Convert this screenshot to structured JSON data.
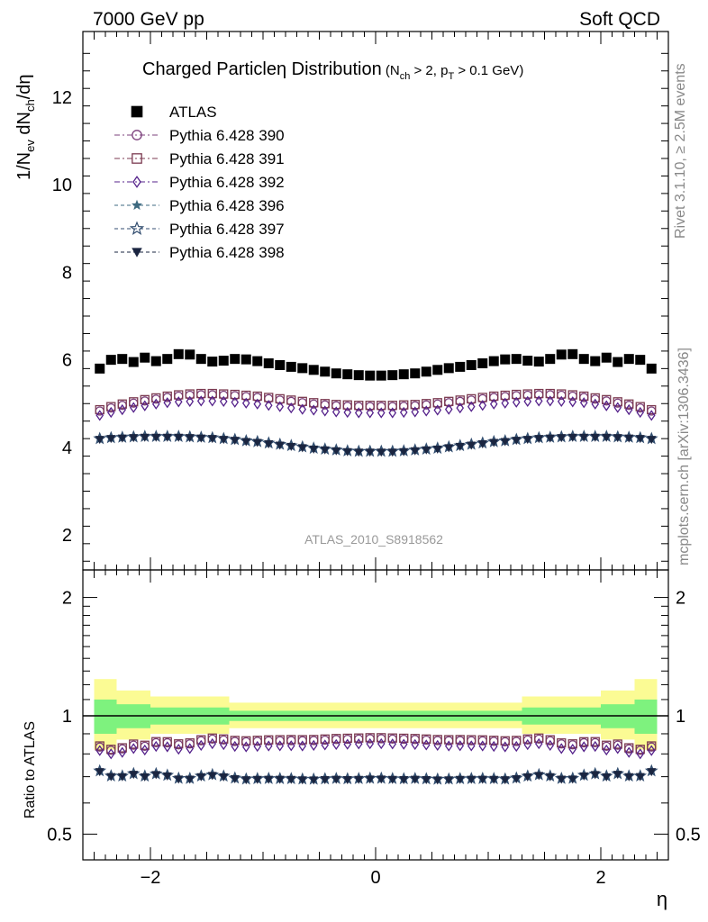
{
  "header": {
    "left": "7000 GeV pp",
    "right": "Soft QCD"
  },
  "side": {
    "rivet": "Rivet 3.1.10, ≥ 2.5M events",
    "mcplots": "mcplots.cern.ch [arXiv:1306.3436]"
  },
  "chart_data": [
    {
      "type": "scatter",
      "title_main": "Charged Particle",
      "title_eta": "η",
      "title_dist": " Distribution",
      "title_cuts": "(N_ch > 2, p_T > 0.1 GeV)",
      "ylabel": "1/N_ev dN_ch/dη",
      "xlabel": "η",
      "analysis_label": "ATLAS_2010_S8918562",
      "xlim": [
        -2.6,
        2.6
      ],
      "ylim": [
        1.2,
        13.5
      ],
      "y_ticks": [
        "2",
        "4",
        "6",
        "8",
        "10",
        "12"
      ],
      "x_ticks": [
        "−2",
        "0",
        "2"
      ],
      "x": [
        -2.45,
        -2.35,
        -2.25,
        -2.15,
        -2.05,
        -1.95,
        -1.85,
        -1.75,
        -1.65,
        -1.55,
        -1.45,
        -1.35,
        -1.25,
        -1.15,
        -1.05,
        -0.95,
        -0.85,
        -0.75,
        -0.65,
        -0.55,
        -0.45,
        -0.35,
        -0.25,
        -0.15,
        -0.05,
        0.05,
        0.15,
        0.25,
        0.35,
        0.45,
        0.55,
        0.65,
        0.75,
        0.85,
        0.95,
        1.05,
        1.15,
        1.25,
        1.35,
        1.45,
        1.55,
        1.65,
        1.75,
        1.85,
        1.95,
        2.05,
        2.15,
        2.25,
        2.35,
        2.45
      ],
      "legend": [
        "ATLAS",
        "Pythia 6.428 390",
        "Pythia 6.428 391",
        "Pythia 6.428 392",
        "Pythia 6.428 396",
        "Pythia 6.428 397",
        "Pythia 6.428 398"
      ],
      "series": [
        {
          "name": "ATLAS",
          "color": "#000000",
          "marker": "filled-square",
          "values": [
            5.8,
            6.0,
            6.02,
            5.95,
            6.05,
            5.97,
            6.02,
            6.13,
            6.12,
            6.02,
            5.96,
            5.98,
            6.02,
            6.01,
            5.97,
            5.92,
            5.88,
            5.84,
            5.81,
            5.77,
            5.73,
            5.69,
            5.67,
            5.65,
            5.64,
            5.64,
            5.65,
            5.67,
            5.69,
            5.73,
            5.77,
            5.81,
            5.84,
            5.88,
            5.92,
            5.97,
            6.01,
            6.02,
            5.98,
            5.96,
            6.02,
            6.12,
            6.13,
            6.02,
            5.97,
            6.05,
            5.95,
            6.02,
            6.0,
            5.8
          ]
        },
        {
          "name": "Pythia 6.428 390",
          "color": "#7b3f7b",
          "marker": "open-circle",
          "values": [
            4.83,
            4.9,
            4.96,
            5.01,
            5.06,
            5.1,
            5.14,
            5.17,
            5.19,
            5.2,
            5.2,
            5.19,
            5.18,
            5.16,
            5.14,
            5.11,
            5.08,
            5.05,
            5.02,
            4.99,
            4.97,
            4.95,
            4.94,
            4.93,
            4.93,
            4.93,
            4.93,
            4.94,
            4.95,
            4.97,
            4.99,
            5.02,
            5.05,
            5.08,
            5.11,
            5.14,
            5.16,
            5.18,
            5.19,
            5.2,
            5.2,
            5.19,
            5.17,
            5.14,
            5.1,
            5.06,
            5.01,
            4.96,
            4.9,
            4.83
          ]
        },
        {
          "name": "Pythia 6.428 391",
          "color": "#7b3a50",
          "marker": "open-square",
          "values": [
            4.86,
            4.93,
            4.99,
            5.04,
            5.09,
            5.13,
            5.17,
            5.2,
            5.22,
            5.23,
            5.23,
            5.22,
            5.21,
            5.19,
            5.17,
            5.14,
            5.11,
            5.08,
            5.05,
            5.02,
            5.0,
            4.98,
            4.97,
            4.96,
            4.96,
            4.96,
            4.96,
            4.97,
            4.98,
            5.0,
            5.02,
            5.05,
            5.08,
            5.11,
            5.14,
            5.17,
            5.19,
            5.21,
            5.22,
            5.23,
            5.23,
            5.22,
            5.2,
            5.17,
            5.13,
            5.09,
            5.04,
            4.99,
            4.93,
            4.86
          ]
        },
        {
          "name": "Pythia 6.428 392",
          "color": "#55228b",
          "marker": "open-diamond",
          "values": [
            4.73,
            4.8,
            4.86,
            4.91,
            4.95,
            4.99,
            5.02,
            5.04,
            5.05,
            5.06,
            5.06,
            5.05,
            5.03,
            5.01,
            4.99,
            4.96,
            4.93,
            4.9,
            4.87,
            4.85,
            4.83,
            4.81,
            4.8,
            4.79,
            4.79,
            4.79,
            4.79,
            4.8,
            4.81,
            4.83,
            4.85,
            4.87,
            4.9,
            4.93,
            4.96,
            4.99,
            5.01,
            5.03,
            5.05,
            5.06,
            5.06,
            5.05,
            5.04,
            5.02,
            4.99,
            4.95,
            4.91,
            4.86,
            4.8,
            4.73
          ]
        },
        {
          "name": "Pythia 6.428 396",
          "color": "#3d6a80",
          "marker": "filled-star",
          "values": [
            4.19,
            4.21,
            4.22,
            4.23,
            4.24,
            4.24,
            4.24,
            4.24,
            4.23,
            4.22,
            4.21,
            4.19,
            4.17,
            4.14,
            4.12,
            4.09,
            4.06,
            4.03,
            4.0,
            3.97,
            3.95,
            3.93,
            3.91,
            3.9,
            3.9,
            3.9,
            3.9,
            3.91,
            3.93,
            3.95,
            3.97,
            4.0,
            4.03,
            4.06,
            4.09,
            4.12,
            4.14,
            4.17,
            4.19,
            4.21,
            4.22,
            4.23,
            4.24,
            4.24,
            4.24,
            4.24,
            4.23,
            4.22,
            4.21,
            4.19
          ]
        },
        {
          "name": "Pythia 6.428 397",
          "color": "#334e70",
          "marker": "open-star",
          "values": [
            4.2,
            4.22,
            4.23,
            4.24,
            4.25,
            4.25,
            4.25,
            4.25,
            4.24,
            4.23,
            4.22,
            4.2,
            4.18,
            4.15,
            4.13,
            4.1,
            4.07,
            4.04,
            4.01,
            3.98,
            3.96,
            3.94,
            3.92,
            3.91,
            3.91,
            3.91,
            3.91,
            3.92,
            3.94,
            3.96,
            3.98,
            4.01,
            4.04,
            4.07,
            4.1,
            4.13,
            4.15,
            4.18,
            4.2,
            4.22,
            4.23,
            4.24,
            4.25,
            4.25,
            4.25,
            4.25,
            4.24,
            4.23,
            4.22,
            4.2
          ]
        },
        {
          "name": "Pythia 6.428 398",
          "color": "#1a2540",
          "marker": "filled-triangle-down",
          "values": [
            4.18,
            4.2,
            4.21,
            4.22,
            4.23,
            4.23,
            4.23,
            4.23,
            4.22,
            4.21,
            4.2,
            4.18,
            4.16,
            4.13,
            4.11,
            4.08,
            4.05,
            4.02,
            3.99,
            3.96,
            3.94,
            3.92,
            3.9,
            3.89,
            3.89,
            3.89,
            3.89,
            3.9,
            3.92,
            3.94,
            3.96,
            3.99,
            4.02,
            4.05,
            4.08,
            4.11,
            4.13,
            4.16,
            4.18,
            4.2,
            4.21,
            4.22,
            4.23,
            4.23,
            4.23,
            4.23,
            4.22,
            4.21,
            4.2,
            4.18
          ]
        }
      ]
    },
    {
      "type": "scatter",
      "ylabel": "Ratio to ATLAS",
      "xlabel": "η",
      "xlim": [
        -2.6,
        2.6
      ],
      "ylim": [
        0.43,
        2.35
      ],
      "y_scale": "log",
      "y_ticks": [
        "0.5",
        "1",
        "2"
      ],
      "x_ticks": [
        "−2",
        "0",
        "2"
      ],
      "reference_line": 1,
      "band_colors": {
        "inner": "#7ef27e",
        "outer": "#fbfb94"
      },
      "bands": [
        {
          "x0": -2.5,
          "x1": -2.3,
          "inner": [
            0.9,
            1.1
          ],
          "outer": [
            0.82,
            1.24
          ]
        },
        {
          "x0": -2.3,
          "x1": -2.0,
          "inner": [
            0.93,
            1.07
          ],
          "outer": [
            0.87,
            1.16
          ]
        },
        {
          "x0": -2.0,
          "x1": -1.3,
          "inner": [
            0.95,
            1.05
          ],
          "outer": [
            0.9,
            1.12
          ]
        },
        {
          "x0": -1.3,
          "x1": 1.3,
          "inner": [
            0.97,
            1.03
          ],
          "outer": [
            0.93,
            1.08
          ]
        },
        {
          "x0": 1.3,
          "x1": 2.0,
          "inner": [
            0.95,
            1.05
          ],
          "outer": [
            0.9,
            1.12
          ]
        },
        {
          "x0": 2.0,
          "x1": 2.3,
          "inner": [
            0.93,
            1.07
          ],
          "outer": [
            0.87,
            1.16
          ]
        },
        {
          "x0": 2.3,
          "x1": 2.5,
          "inner": [
            0.9,
            1.1
          ],
          "outer": [
            0.82,
            1.24
          ]
        }
      ]
    }
  ]
}
